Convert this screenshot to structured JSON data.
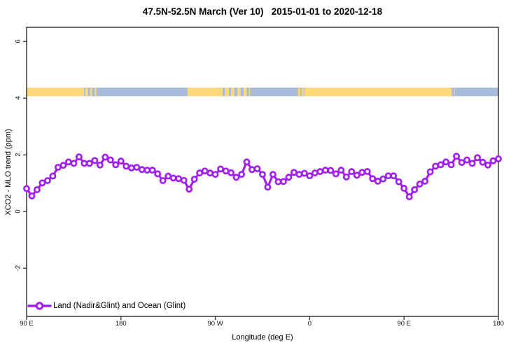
{
  "title": "47.5N-52.5N March (Ver 10)   2015-01-01 to 2020-12-18",
  "colors": {
    "axis": "#2e2e2e",
    "series_purple": "#A020F0",
    "land_band": "#FFD87A",
    "ocean_band": "#A7BBDB",
    "background": "#ffffff"
  },
  "chart_data": {
    "type": "line",
    "title": "47.5N-52.5N March (Ver 10)   2015-01-01 to 2020-12-18",
    "xlabel": "Longitude (deg E)",
    "ylabel": "XCO2 - MLO trend (ppm)",
    "xlim": [
      90,
      540
    ],
    "ylim": [
      -3.7,
      6.5
    ],
    "grid": false,
    "x_ticks": [
      {
        "value": 90,
        "label": "90 E"
      },
      {
        "value": 180,
        "label": "180"
      },
      {
        "value": 270,
        "label": "90 W"
      },
      {
        "value": 360,
        "label": "0"
      },
      {
        "value": 450,
        "label": "90 E"
      },
      {
        "value": 540,
        "label": "180"
      }
    ],
    "y_ticks": [
      {
        "value": -2,
        "label": "-2"
      },
      {
        "value": 0,
        "label": "0"
      },
      {
        "value": 2,
        "label": "2"
      },
      {
        "value": 4,
        "label": "4"
      },
      {
        "value": 6,
        "label": "6"
      }
    ],
    "legend": {
      "position": "bottom-left",
      "entries": [
        {
          "label": "Land (Nadir&Glint) and Ocean (Glint)",
          "color": "#A020F0",
          "marker": "open-circle-line"
        }
      ]
    },
    "surface_band": {
      "description": "land/ocean strip along latitude circle",
      "y_range": [
        4.07,
        4.37
      ],
      "land_color": "#FFD87A",
      "ocean_color": "#A7BBDB",
      "segments": [
        {
          "start": 90,
          "end": 144.8,
          "surface": "land"
        },
        {
          "start": 144.8,
          "end": 243.5,
          "surface": "ocean"
        },
        {
          "start": 243.5,
          "end": 303,
          "surface": "land"
        },
        {
          "start": 303,
          "end": 356.5,
          "surface": "ocean"
        },
        {
          "start": 356.5,
          "end": 498.5,
          "surface": "land"
        },
        {
          "start": 498.5,
          "end": 540,
          "surface": "ocean"
        }
      ],
      "speckles": [
        {
          "start": 146,
          "end": 148.5,
          "surface": "land"
        },
        {
          "start": 150.5,
          "end": 152.5,
          "surface": "land"
        },
        {
          "start": 155,
          "end": 156.5,
          "surface": "land"
        },
        {
          "start": 349,
          "end": 351,
          "surface": "land"
        },
        {
          "start": 352.5,
          "end": 354.5,
          "surface": "land"
        },
        {
          "start": 355.2,
          "end": 356.4,
          "surface": "land"
        },
        {
          "start": 277,
          "end": 279,
          "surface": "ocean"
        },
        {
          "start": 283,
          "end": 285,
          "surface": "ocean"
        },
        {
          "start": 288,
          "end": 291,
          "surface": "ocean"
        },
        {
          "start": 294,
          "end": 297,
          "surface": "ocean"
        },
        {
          "start": 300,
          "end": 302,
          "surface": "ocean"
        },
        {
          "start": 495.5,
          "end": 498,
          "surface": "ocean"
        }
      ]
    },
    "series": [
      {
        "name": "Land (Nadir&Glint) and Ocean (Glint)",
        "color": "#A020F0",
        "marker": "open-circle",
        "points": [
          [
            90,
            0.81
          ],
          [
            95,
            0.55
          ],
          [
            100,
            0.77
          ],
          [
            105,
            1.01
          ],
          [
            110,
            1.09
          ],
          [
            115,
            1.25
          ],
          [
            120,
            1.56
          ],
          [
            125,
            1.63
          ],
          [
            130,
            1.75
          ],
          [
            135,
            1.7
          ],
          [
            140,
            1.93
          ],
          [
            145,
            1.7
          ],
          [
            150,
            1.7
          ],
          [
            155,
            1.8
          ],
          [
            160,
            1.64
          ],
          [
            165,
            1.92
          ],
          [
            170,
            1.82
          ],
          [
            175,
            1.65
          ],
          [
            180,
            1.78
          ],
          [
            185,
            1.6
          ],
          [
            190,
            1.54
          ],
          [
            195,
            1.56
          ],
          [
            200,
            1.48
          ],
          [
            205,
            1.46
          ],
          [
            210,
            1.46
          ],
          [
            215,
            1.33
          ],
          [
            220,
            1.09
          ],
          [
            225,
            1.25
          ],
          [
            230,
            1.18
          ],
          [
            235,
            1.16
          ],
          [
            240,
            1.1
          ],
          [
            245,
            0.79
          ],
          [
            250,
            1.14
          ],
          [
            255,
            1.36
          ],
          [
            260,
            1.43
          ],
          [
            265,
            1.36
          ],
          [
            270,
            1.31
          ],
          [
            275,
            1.5
          ],
          [
            280,
            1.43
          ],
          [
            285,
            1.37
          ],
          [
            290,
            1.21
          ],
          [
            295,
            1.31
          ],
          [
            300,
            1.75
          ],
          [
            305,
            1.48
          ],
          [
            310,
            1.51
          ],
          [
            315,
            1.31
          ],
          [
            320,
            0.86
          ],
          [
            325,
            1.31
          ],
          [
            330,
            1.05
          ],
          [
            335,
            1.06
          ],
          [
            340,
            1.21
          ],
          [
            345,
            1.38
          ],
          [
            350,
            1.31
          ],
          [
            355,
            1.35
          ],
          [
            360,
            1.26
          ],
          [
            365,
            1.36
          ],
          [
            370,
            1.41
          ],
          [
            375,
            1.46
          ],
          [
            380,
            1.45
          ],
          [
            385,
            1.33
          ],
          [
            390,
            1.46
          ],
          [
            395,
            1.22
          ],
          [
            400,
            1.41
          ],
          [
            405,
            1.28
          ],
          [
            410,
            1.38
          ],
          [
            415,
            1.41
          ],
          [
            420,
            1.16
          ],
          [
            425,
            1.07
          ],
          [
            430,
            1.15
          ],
          [
            435,
            1.26
          ],
          [
            440,
            1.26
          ],
          [
            445,
            1.05
          ],
          [
            450,
            0.82
          ],
          [
            455,
            0.52
          ],
          [
            460,
            0.77
          ],
          [
            465,
            0.97
          ],
          [
            470,
            1.07
          ],
          [
            475,
            1.4
          ],
          [
            480,
            1.6
          ],
          [
            485,
            1.65
          ],
          [
            490,
            1.75
          ],
          [
            495,
            1.65
          ],
          [
            500,
            1.95
          ],
          [
            505,
            1.73
          ],
          [
            510,
            1.82
          ],
          [
            515,
            1.7
          ],
          [
            520,
            1.9
          ],
          [
            525,
            1.74
          ],
          [
            530,
            1.64
          ],
          [
            535,
            1.79
          ],
          [
            540,
            1.86
          ]
        ]
      }
    ]
  }
}
